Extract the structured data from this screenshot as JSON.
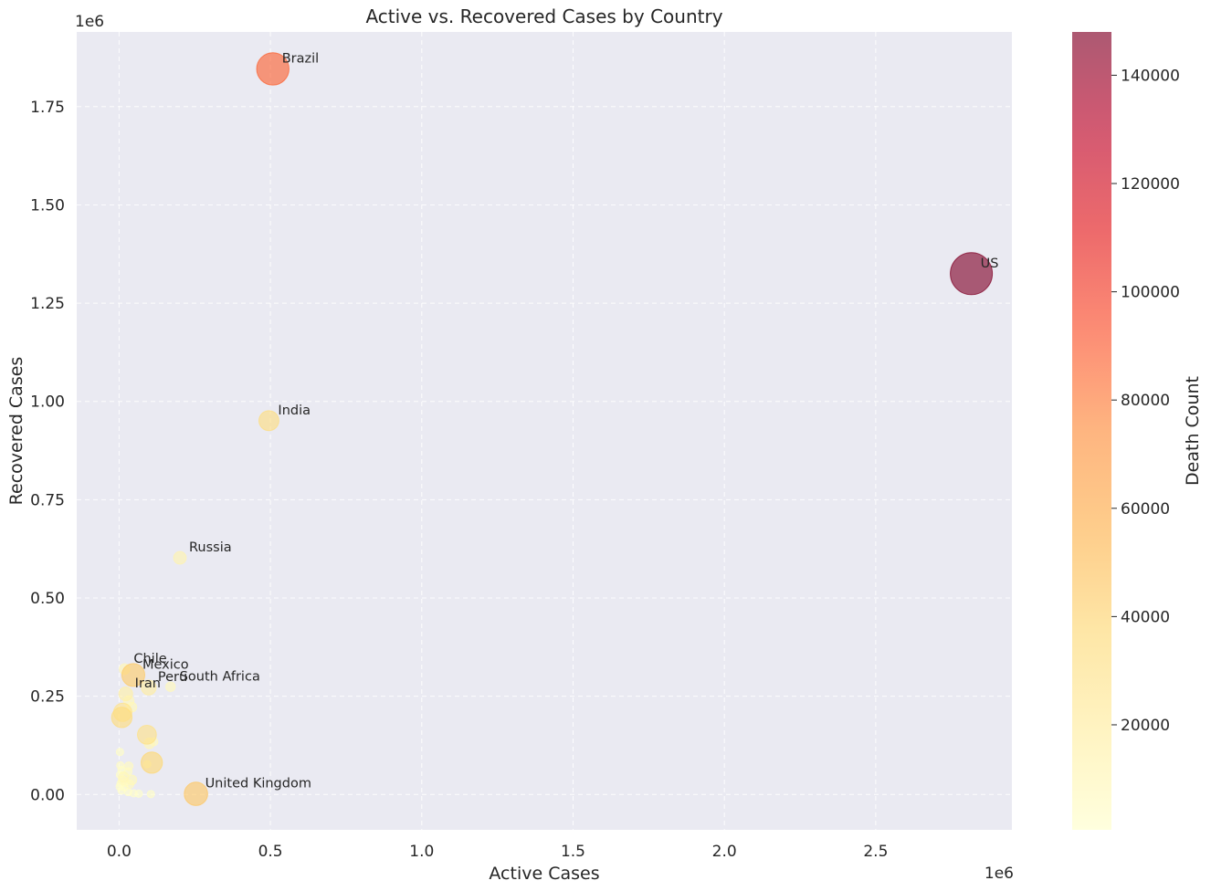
{
  "chart_data": {
    "type": "scatter",
    "title": "Active vs. Recovered Cases by Country",
    "xlabel": "Active Cases",
    "ylabel": "Recovered Cases",
    "x_multiplier_label": "1e6",
    "y_multiplier_label": "1e6",
    "xlim": [
      -140000,
      2950000
    ],
    "ylim": [
      -90000,
      1940000
    ],
    "xticks": [
      0,
      500000,
      1000000,
      1500000,
      2000000,
      2500000
    ],
    "xtick_labels": [
      "0.0",
      "0.5",
      "1.0",
      "1.5",
      "2.0",
      "2.5"
    ],
    "yticks": [
      0,
      250000,
      500000,
      750000,
      1000000,
      1250000,
      1500000,
      1750000
    ],
    "ytick_labels": [
      "0.00",
      "0.25",
      "0.50",
      "0.75",
      "1.00",
      "1.25",
      "1.50",
      "1.75"
    ],
    "grid": true,
    "colorbar": {
      "label": "Death Count",
      "range": [
        600,
        148000
      ],
      "ticks": [
        20000,
        40000,
        60000,
        80000,
        100000,
        120000,
        140000
      ],
      "tick_labels": [
        "20000",
        "40000",
        "60000",
        "80000",
        "100000",
        "120000",
        "140000"
      ],
      "colormap": [
        "#ffffcc",
        "#ffeda0",
        "#fed976",
        "#feb24c",
        "#fd8d3c",
        "#fc4e2a",
        "#e31a1c",
        "#bd0026",
        "#800026"
      ]
    },
    "points": [
      {
        "label": "US",
        "x": 2816000,
        "y": 1325000,
        "deaths": 148000
      },
      {
        "label": "Brazil",
        "x": 508000,
        "y": 1846000,
        "deaths": 87600
      },
      {
        "label": "India",
        "x": 495000,
        "y": 951000,
        "deaths": 33400
      },
      {
        "label": "Russia",
        "x": 201000,
        "y": 602000,
        "deaths": 13300
      },
      {
        "label": "Chile",
        "x": 18000,
        "y": 319000,
        "deaths": 9200
      },
      {
        "label": "Mexico",
        "x": 47000,
        "y": 304000,
        "deaths": 44000
      },
      {
        "label": "Peru",
        "x": 98000,
        "y": 272000,
        "deaths": 18400
      },
      {
        "label": "South Africa",
        "x": 170000,
        "y": 274000,
        "deaths": 7500
      },
      {
        "label": "Iran",
        "x": 22000,
        "y": 256000,
        "deaths": 15900
      },
      {
        "label": "United Kingdom",
        "x": 254000,
        "y": 1500,
        "deaths": 45800
      },
      {
        "label": "",
        "x": 32000,
        "y": 238000,
        "deaths": 9000
      },
      {
        "label": "",
        "x": 42000,
        "y": 222000,
        "deaths": 8000
      },
      {
        "label": "",
        "x": 12000,
        "y": 209000,
        "deaths": 28000
      },
      {
        "label": "",
        "x": 9000,
        "y": 196000,
        "deaths": 35000
      },
      {
        "label": "",
        "x": 92000,
        "y": 152000,
        "deaths": 30000
      },
      {
        "label": "",
        "x": 100000,
        "y": 130000,
        "deaths": 9200
      },
      {
        "label": "",
        "x": 115000,
        "y": 134000,
        "deaths": 5500
      },
      {
        "label": "",
        "x": 108000,
        "y": 81000,
        "deaths": 38000
      },
      {
        "label": "",
        "x": 3000,
        "y": 108000,
        "deaths": 3000
      },
      {
        "label": "",
        "x": 93000,
        "y": 77000,
        "deaths": 1500
      },
      {
        "label": "",
        "x": 32000,
        "y": 72000,
        "deaths": 6000
      },
      {
        "label": "",
        "x": 4000,
        "y": 74000,
        "deaths": 3500
      },
      {
        "label": "",
        "x": 8000,
        "y": 62000,
        "deaths": 3000
      },
      {
        "label": "",
        "x": 30000,
        "y": 58000,
        "deaths": 5000
      },
      {
        "label": "",
        "x": 3000,
        "y": 50000,
        "deaths": 2000
      },
      {
        "label": "",
        "x": 15000,
        "y": 44000,
        "deaths": 9000
      },
      {
        "label": "",
        "x": 12000,
        "y": 36000,
        "deaths": 6500
      },
      {
        "label": "",
        "x": 42000,
        "y": 37000,
        "deaths": 8000
      },
      {
        "label": "",
        "x": 20000,
        "y": 30000,
        "deaths": 5000
      },
      {
        "label": "",
        "x": 5000,
        "y": 28000,
        "deaths": 3000
      },
      {
        "label": "",
        "x": 35000,
        "y": 26000,
        "deaths": 6000
      },
      {
        "label": "",
        "x": 2000,
        "y": 20000,
        "deaths": 1500
      },
      {
        "label": "",
        "x": 18000,
        "y": 18000,
        "deaths": 2500
      },
      {
        "label": "",
        "x": 8000,
        "y": 10000,
        "deaths": 1200
      },
      {
        "label": "",
        "x": 30000,
        "y": 6000,
        "deaths": 2000
      },
      {
        "label": "",
        "x": 65000,
        "y": 2000,
        "deaths": 1000
      },
      {
        "label": "",
        "x": 105000,
        "y": 1000,
        "deaths": 2500
      },
      {
        "label": "",
        "x": 48000,
        "y": 3000,
        "deaths": 1200
      }
    ]
  }
}
